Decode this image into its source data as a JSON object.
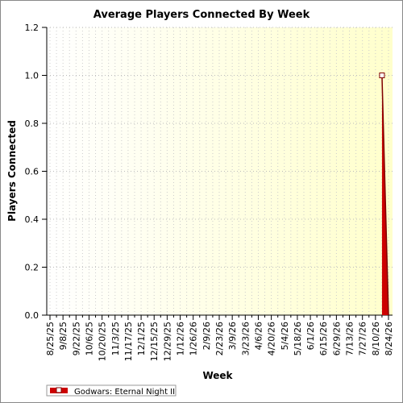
{
  "chart_data": {
    "type": "area",
    "title": "Average Players Connected By Week",
    "x_label": "Week",
    "y_label": "Players Connected",
    "categories": [
      "8/25/25",
      null,
      "9/8/25",
      null,
      "9/22/25",
      null,
      "10/6/25",
      null,
      "10/20/25",
      null,
      "11/3/25",
      null,
      "11/17/25",
      null,
      "12/1/25",
      null,
      "12/15/25",
      null,
      "12/29/25",
      null,
      "1/12/26",
      null,
      "1/26/26",
      null,
      "2/9/26",
      null,
      "2/23/26",
      null,
      "3/9/26",
      null,
      "3/23/26",
      null,
      "4/6/26",
      null,
      "4/20/26",
      null,
      "5/4/26",
      null,
      "5/18/26",
      null,
      "6/1/26",
      null,
      "6/15/26",
      null,
      "6/29/26",
      null,
      "7/13/26",
      null,
      "7/27/26",
      null,
      "8/10/26",
      null,
      "8/24/26"
    ],
    "series": [
      {
        "name": "Godwars: Eternal Night II",
        "color": "#cc0000",
        "values": [
          null,
          null,
          null,
          null,
          null,
          null,
          null,
          null,
          null,
          null,
          null,
          null,
          null,
          null,
          null,
          null,
          null,
          null,
          null,
          null,
          null,
          null,
          null,
          null,
          null,
          null,
          null,
          null,
          null,
          null,
          null,
          null,
          null,
          null,
          null,
          null,
          null,
          null,
          null,
          null,
          null,
          null,
          null,
          null,
          null,
          null,
          null,
          null,
          null,
          null,
          null,
          1.0,
          0
        ]
      }
    ],
    "ylim": [
      0,
      1.2
    ],
    "yticks": [
      {
        "value": 0,
        "label": "0.0"
      },
      0.2,
      0.4,
      0.6,
      0.8,
      {
        "value": 1,
        "label": "1.0"
      },
      1.2
    ],
    "grid": true,
    "legend": "bottom-left"
  }
}
